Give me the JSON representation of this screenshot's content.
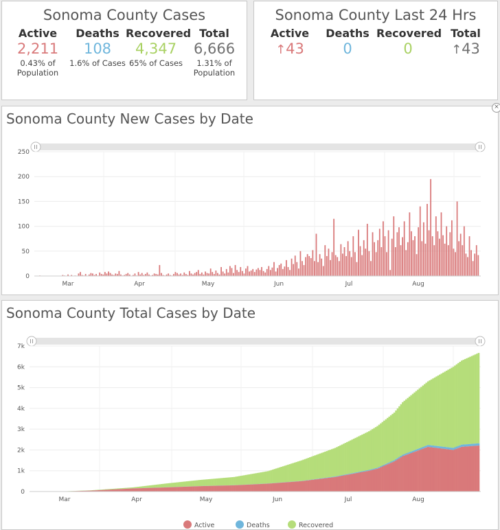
{
  "summary": {
    "title": "Sonoma County Cases",
    "active": {
      "label": "Active",
      "value": "2,211",
      "sub1": "0.43% of",
      "sub2": "Population"
    },
    "deaths": {
      "label": "Deaths",
      "value": "108",
      "sub1": "1.6% of Cases",
      "sub2": ""
    },
    "recovered": {
      "label": "Recovered",
      "value": "4,347",
      "sub1": "65% of Cases",
      "sub2": ""
    },
    "total": {
      "label": "Total",
      "value": "6,666",
      "sub1": "1.31% of",
      "sub2": "Population"
    }
  },
  "last24": {
    "title": "Sonoma County Last 24 Hrs",
    "active": {
      "label": "Active",
      "value": "43",
      "icon": "up-arrow-icon"
    },
    "deaths": {
      "label": "Deaths",
      "value": "0"
    },
    "recovered": {
      "label": "Recovered",
      "value": "0"
    },
    "total": {
      "label": "Total",
      "value": "43",
      "icon": "up-arrow-icon"
    }
  },
  "colors": {
    "active": "#d9797a",
    "deaths": "#6fb6dc",
    "recovered": "#b5dd7a",
    "total": "#707070"
  },
  "chart_data": [
    {
      "type": "bar",
      "title": "Sonoma County New Cases by Date",
      "ylim": [
        0,
        250
      ],
      "yticks": [
        0,
        50,
        100,
        150,
        200,
        250
      ],
      "xtick_labels": [
        "Mar",
        "Apr",
        "May",
        "Jun",
        "Jul",
        "Aug"
      ],
      "grid": true,
      "series": [
        {
          "name": "",
          "color": "#d9797a",
          "values": [
            0,
            0,
            1,
            0,
            0,
            0,
            0,
            0,
            0,
            0,
            0,
            0,
            0,
            0,
            0,
            2,
            1,
            0,
            3,
            0,
            2,
            0,
            1,
            0,
            5,
            8,
            2,
            1,
            4,
            0,
            3,
            6,
            5,
            2,
            4,
            1,
            7,
            4,
            3,
            8,
            5,
            9,
            6,
            3,
            2,
            5,
            4,
            10,
            3,
            1,
            2,
            4,
            6,
            3,
            0,
            2,
            5,
            1,
            8,
            3,
            6,
            2,
            4,
            7,
            3,
            1,
            2,
            5,
            4,
            3,
            22,
            6,
            2,
            1,
            3,
            5,
            2,
            1,
            4,
            8,
            6,
            3,
            5,
            2,
            7,
            4,
            2,
            10,
            5,
            3,
            6,
            8,
            12,
            4,
            7,
            3,
            9,
            6,
            5,
            15,
            8,
            4,
            11,
            6,
            3,
            18,
            9,
            5,
            14,
            7,
            20,
            16,
            6,
            22,
            12,
            8,
            18,
            10,
            5,
            15,
            20,
            9,
            11,
            14,
            8,
            13,
            16,
            12,
            18,
            10,
            7,
            14,
            20,
            12,
            17,
            28,
            9,
            16,
            22,
            25,
            14,
            19,
            32,
            18,
            12,
            35,
            24,
            41,
            28,
            15,
            50,
            30,
            22,
            38,
            44,
            40,
            36,
            52,
            30,
            85,
            28,
            44,
            35,
            20,
            62,
            40,
            55,
            32,
            48,
            115,
            42,
            38,
            30,
            64,
            45,
            58,
            40,
            70,
            50,
            38,
            80,
            48,
            28,
            93,
            60,
            42,
            72,
            55,
            105,
            50,
            30,
            88,
            68,
            48,
            72,
            95,
            58,
            110,
            80,
            48,
            92,
            12,
            75,
            120,
            58,
            88,
            98,
            62,
            78,
            110,
            52,
            68,
            128,
            90,
            72,
            80,
            44,
            98,
            140,
            70,
            108,
            65,
            145,
            92,
            195,
            80,
            62,
            120,
            90,
            75,
            128,
            82,
            65,
            100,
            62,
            88,
            112,
            55,
            48,
            150,
            70,
            85,
            62,
            100,
            45,
            38,
            80,
            52,
            30,
            45,
            62,
            42
          ]
        }
      ]
    },
    {
      "type": "area",
      "title": "Sonoma County Total Cases by Date",
      "ylim": [
        0,
        7000
      ],
      "yticks": [
        0,
        1000,
        2000,
        3000,
        4000,
        5000,
        6000,
        7000
      ],
      "ytick_labels": [
        "0",
        "1k",
        "2k",
        "3k",
        "4k",
        "5k",
        "6k",
        "7k"
      ],
      "xtick_labels": [
        "Mar",
        "Apr",
        "May",
        "Jun",
        "Jul",
        "Aug"
      ],
      "grid": true,
      "stacked": true,
      "legend": [
        "Active",
        "Deaths",
        "Recovered"
      ],
      "legend_position": "bottom",
      "anchors": {
        "x_index": [
          0,
          20,
          35,
          60,
          80,
          100,
          120,
          140,
          160,
          180,
          200,
          205,
          215,
          220,
          235,
          250,
          255,
          265
        ],
        "total": [
          0,
          15,
          60,
          200,
          390,
          560,
          700,
          980,
          1500,
          2100,
          2900,
          3150,
          3800,
          4300,
          5300,
          6000,
          6300,
          6666
        ],
        "active": [
          0,
          10,
          45,
          150,
          200,
          260,
          300,
          380,
          500,
          700,
          1000,
          1100,
          1450,
          1700,
          2150,
          2000,
          2150,
          2211
        ],
        "deaths": [
          0,
          0,
          2,
          4,
          5,
          5,
          6,
          8,
          10,
          25,
          40,
          45,
          60,
          70,
          90,
          100,
          105,
          108
        ]
      }
    }
  ]
}
